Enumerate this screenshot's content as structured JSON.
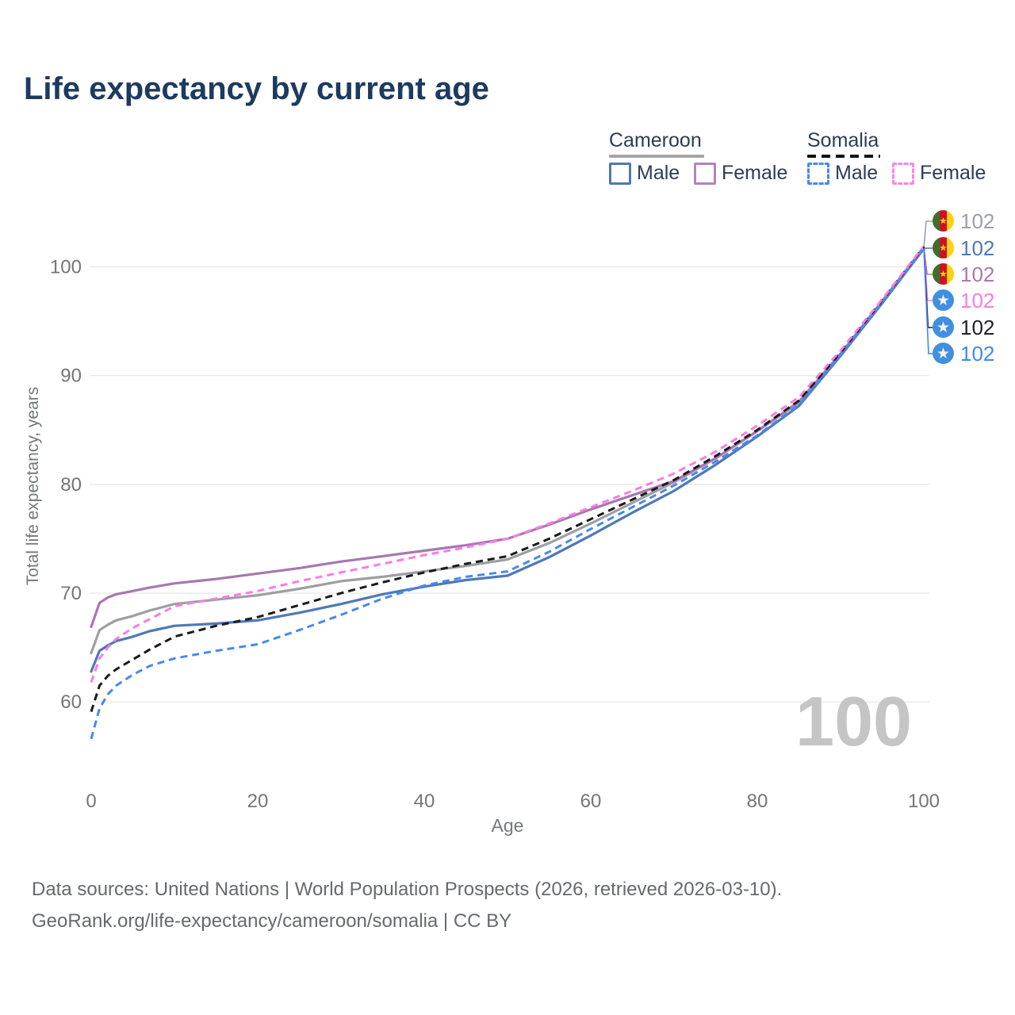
{
  "title": "Life expectancy by current age",
  "legend": {
    "groups": [
      {
        "label": "Cameroon",
        "line_style": "solid",
        "underline_color": "#a5a5a5",
        "items": [
          {
            "label": "Male",
            "color": "#4e79b6",
            "dash": false
          },
          {
            "label": "Female",
            "color": "#b286b6",
            "dash": false
          }
        ]
      },
      {
        "label": "Somalia",
        "line_style": "dashed",
        "underline_color": "#131313",
        "items": [
          {
            "label": "Male",
            "color": "#4789f0",
            "dash": true
          },
          {
            "label": "Female",
            "color": "#fa86e4",
            "dash": true
          }
        ]
      }
    ]
  },
  "watermark_age": "100",
  "footer": {
    "line1": "Data sources: United Nations | World Population Prospects (2026, retrieved 2026-03-10).",
    "line2": "GeoRank.org/life-expectancy/cameroon/somalia | CC BY"
  },
  "chart_data": {
    "type": "line",
    "title": "Life expectancy by current age",
    "xlabel": "Age",
    "ylabel": "Total life expectancy, years",
    "xlim": [
      0,
      100
    ],
    "ylim": [
      56,
      104
    ],
    "x_ticks": [
      0,
      20,
      40,
      60,
      80,
      100
    ],
    "y_ticks": [
      60,
      70,
      80,
      90,
      100
    ],
    "grid": "horizontal-only",
    "legend_position": "top-right",
    "series": [
      {
        "name": "Cameroon (both sexes)",
        "country": "Cameroon",
        "sex": "total",
        "color": "#9e9fa3",
        "dash": false,
        "points": [
          [
            0,
            64.5
          ],
          [
            1,
            66.6
          ],
          [
            2,
            67.1
          ],
          [
            3,
            67.5
          ],
          [
            5,
            67.9
          ],
          [
            7,
            68.4
          ],
          [
            10,
            69.0
          ],
          [
            15,
            69.4
          ],
          [
            20,
            69.8
          ],
          [
            25,
            70.4
          ],
          [
            30,
            71.1
          ],
          [
            35,
            71.5
          ],
          [
            40,
            72.0
          ],
          [
            45,
            72.5
          ],
          [
            50,
            73.1
          ],
          [
            55,
            74.6
          ],
          [
            60,
            76.4
          ],
          [
            65,
            78.3
          ],
          [
            70,
            80.2
          ],
          [
            75,
            82.4
          ],
          [
            80,
            84.9
          ],
          [
            85,
            87.5
          ],
          [
            90,
            92.0
          ],
          [
            95,
            96.8
          ],
          [
            100,
            101.75
          ]
        ]
      },
      {
        "name": "Cameroon Male",
        "country": "Cameroon",
        "sex": "male",
        "color": "#4e79b6",
        "dash": false,
        "points": [
          [
            0,
            62.8
          ],
          [
            1,
            64.7
          ],
          [
            2,
            65.2
          ],
          [
            3,
            65.6
          ],
          [
            5,
            66.0
          ],
          [
            7,
            66.5
          ],
          [
            10,
            67.0
          ],
          [
            15,
            67.2
          ],
          [
            20,
            67.5
          ],
          [
            25,
            68.2
          ],
          [
            30,
            69.0
          ],
          [
            35,
            69.9
          ],
          [
            40,
            70.6
          ],
          [
            45,
            71.2
          ],
          [
            50,
            71.6
          ],
          [
            55,
            73.3
          ],
          [
            60,
            75.3
          ],
          [
            65,
            77.4
          ],
          [
            70,
            79.4
          ],
          [
            75,
            81.8
          ],
          [
            80,
            84.4
          ],
          [
            85,
            87.2
          ],
          [
            90,
            91.8
          ],
          [
            95,
            96.65
          ],
          [
            100,
            101.65
          ]
        ]
      },
      {
        "name": "Cameroon Female",
        "country": "Cameroon",
        "sex": "female",
        "color": "#a877b0",
        "dash": false,
        "points": [
          [
            0,
            66.9
          ],
          [
            1,
            69.1
          ],
          [
            2,
            69.6
          ],
          [
            3,
            69.9
          ],
          [
            5,
            70.2
          ],
          [
            7,
            70.5
          ],
          [
            10,
            70.9
          ],
          [
            15,
            71.3
          ],
          [
            20,
            71.8
          ],
          [
            25,
            72.3
          ],
          [
            30,
            72.9
          ],
          [
            35,
            73.4
          ],
          [
            40,
            73.9
          ],
          [
            45,
            74.4
          ],
          [
            50,
            75.0
          ],
          [
            55,
            76.3
          ],
          [
            60,
            77.7
          ],
          [
            65,
            79.0
          ],
          [
            70,
            80.3
          ],
          [
            75,
            82.4
          ],
          [
            80,
            84.9
          ],
          [
            85,
            87.6
          ],
          [
            90,
            92.0
          ],
          [
            95,
            96.85
          ],
          [
            100,
            101.8
          ]
        ]
      },
      {
        "name": "Somalia (both sexes)",
        "country": "Somalia",
        "sex": "total",
        "color": "#1a1a1a",
        "dash": true,
        "points": [
          [
            0,
            59.1
          ],
          [
            1,
            61.5
          ],
          [
            2,
            62.4
          ],
          [
            3,
            63.0
          ],
          [
            5,
            63.9
          ],
          [
            7,
            64.8
          ],
          [
            10,
            66.0
          ],
          [
            15,
            67.0
          ],
          [
            20,
            67.8
          ],
          [
            25,
            68.9
          ],
          [
            30,
            70.0
          ],
          [
            35,
            71.0
          ],
          [
            40,
            71.9
          ],
          [
            45,
            72.7
          ],
          [
            50,
            73.4
          ],
          [
            55,
            75.0
          ],
          [
            60,
            76.8
          ],
          [
            65,
            78.6
          ],
          [
            70,
            80.4
          ],
          [
            75,
            82.6
          ],
          [
            80,
            85.0
          ],
          [
            85,
            87.7
          ],
          [
            90,
            92.1
          ],
          [
            95,
            96.9
          ],
          [
            100,
            101.85
          ]
        ]
      },
      {
        "name": "Somalia Male",
        "country": "Somalia",
        "sex": "male",
        "color": "#4789f0",
        "dash": true,
        "points": [
          [
            0,
            56.6
          ],
          [
            1,
            59.4
          ],
          [
            2,
            60.7
          ],
          [
            3,
            61.5
          ],
          [
            5,
            62.5
          ],
          [
            7,
            63.3
          ],
          [
            10,
            64.0
          ],
          [
            15,
            64.7
          ],
          [
            20,
            65.3
          ],
          [
            25,
            66.6
          ],
          [
            30,
            68.0
          ],
          [
            35,
            69.5
          ],
          [
            40,
            70.7
          ],
          [
            45,
            71.5
          ],
          [
            50,
            72.0
          ],
          [
            55,
            73.8
          ],
          [
            60,
            75.9
          ],
          [
            65,
            77.9
          ],
          [
            70,
            79.9
          ],
          [
            75,
            82.1
          ],
          [
            80,
            84.5
          ],
          [
            85,
            87.3
          ],
          [
            90,
            91.9
          ],
          [
            95,
            96.7
          ],
          [
            100,
            101.7
          ]
        ]
      },
      {
        "name": "Somalia Female",
        "country": "Somalia",
        "sex": "female",
        "color": "#fa7ce4",
        "dash": true,
        "points": [
          [
            0,
            61.8
          ],
          [
            1,
            64.0
          ],
          [
            2,
            65.0
          ],
          [
            3,
            65.8
          ],
          [
            5,
            66.8
          ],
          [
            7,
            67.6
          ],
          [
            10,
            68.8
          ],
          [
            15,
            69.5
          ],
          [
            20,
            70.2
          ],
          [
            25,
            71.1
          ],
          [
            30,
            71.9
          ],
          [
            35,
            72.7
          ],
          [
            40,
            73.5
          ],
          [
            45,
            74.2
          ],
          [
            50,
            75.0
          ],
          [
            55,
            76.4
          ],
          [
            60,
            77.9
          ],
          [
            65,
            79.4
          ],
          [
            70,
            81.0
          ],
          [
            75,
            83.0
          ],
          [
            80,
            85.4
          ],
          [
            85,
            88.0
          ],
          [
            90,
            92.3
          ],
          [
            95,
            97.0
          ],
          [
            100,
            101.9
          ]
        ]
      }
    ],
    "end_labels": [
      {
        "value": "102",
        "color": "#9aa0a6",
        "flag": "cameroon",
        "series_index": 0
      },
      {
        "value": "102",
        "color": "#4e79b6",
        "flag": "cameroon",
        "series_index": 1
      },
      {
        "value": "102",
        "color": "#ad77b3",
        "flag": "cameroon",
        "series_index": 2
      },
      {
        "value": "102",
        "color": "#fa7ce4",
        "flag": "somalia",
        "series_index": 5
      },
      {
        "value": "102",
        "color": "#202124",
        "flag": "somalia",
        "series_index": 3
      },
      {
        "value": "102",
        "color": "#4287f5",
        "flag": "somalia",
        "series_index": 4
      }
    ],
    "flag_colors": {
      "cameroon_green": "#3f6f2b",
      "cameroon_red": "#ce1126",
      "cameroon_yellow": "#fcd116",
      "somalia_blue": "#418fde",
      "somalia_star": "#f2f4f7"
    }
  }
}
